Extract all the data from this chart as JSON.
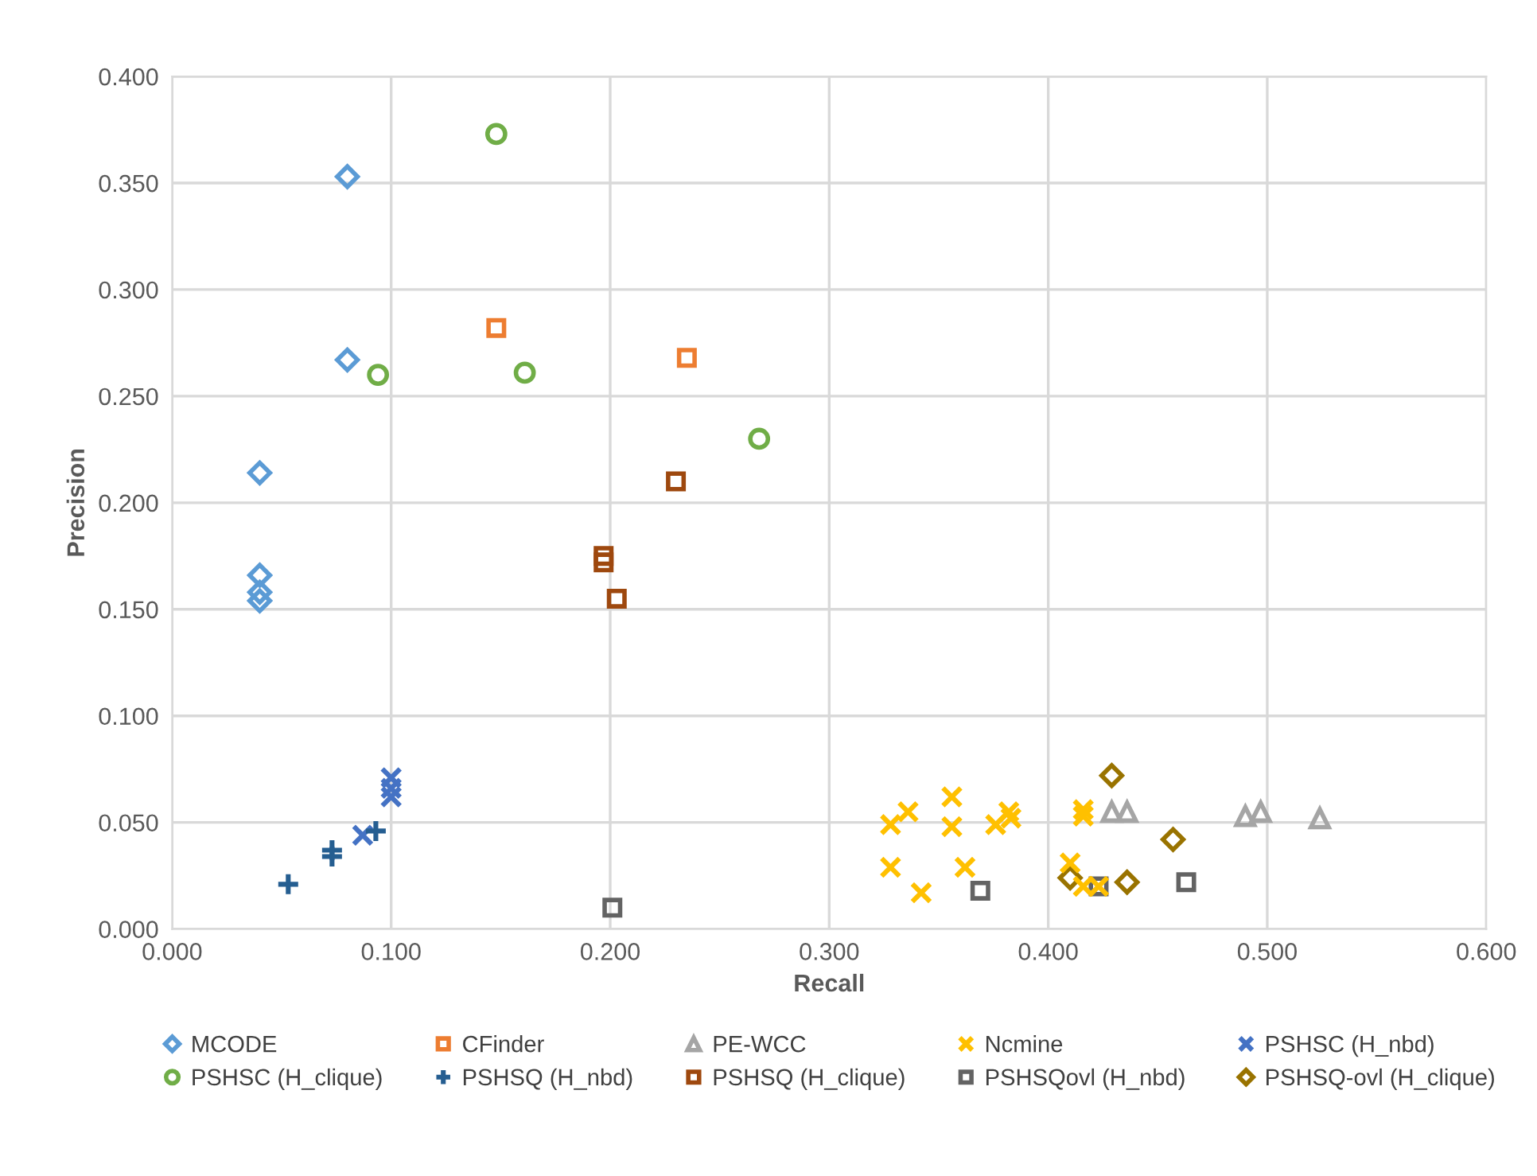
{
  "chart_data": {
    "type": "scatter",
    "xlabel": "Recall",
    "ylabel": "Precision",
    "xlim": [
      0,
      0.6
    ],
    "ylim": [
      0,
      0.4
    ],
    "xticks": [
      {
        "value": 0,
        "label": "0.000"
      },
      {
        "value": 0.1,
        "label": "0.100"
      },
      {
        "value": 0.2,
        "label": "0.200"
      },
      {
        "value": 0.3,
        "label": "0.300"
      },
      {
        "value": 0.4,
        "label": "0.400"
      },
      {
        "value": 0.5,
        "label": "0.500"
      },
      {
        "value": 0.6,
        "label": "0.600"
      }
    ],
    "yticks": [
      {
        "value": 0,
        "label": "0.000"
      },
      {
        "value": 0.05,
        "label": "0.050"
      },
      {
        "value": 0.1,
        "label": "0.100"
      },
      {
        "value": 0.15,
        "label": "0.150"
      },
      {
        "value": 0.2,
        "label": "0.200"
      },
      {
        "value": 0.25,
        "label": "0.250"
      },
      {
        "value": 0.3,
        "label": "0.300"
      },
      {
        "value": 0.35,
        "label": "0.350"
      },
      {
        "value": 0.4,
        "label": "0.400"
      }
    ],
    "grid": true,
    "legend": "bottom",
    "series": [
      {
        "name": "MCODE",
        "color": "#5b9bd5",
        "marker": "diamond",
        "x": [
          0.08,
          0.08,
          0.04,
          0.04,
          0.04,
          0.04
        ],
        "values": [
          0.353,
          0.267,
          0.214,
          0.166,
          0.158,
          0.154
        ]
      },
      {
        "name": "CFinder",
        "color": "#ed7d31",
        "marker": "square",
        "x": [
          0.148,
          0.235
        ],
        "values": [
          0.282,
          0.268
        ]
      },
      {
        "name": "PE-WCC",
        "color": "#a5a5a5",
        "marker": "triangle",
        "x": [
          0.429,
          0.436,
          0.49,
          0.497,
          0.524
        ],
        "values": [
          0.055,
          0.055,
          0.053,
          0.055,
          0.052
        ]
      },
      {
        "name": "Ncmine",
        "color": "#ffc000",
        "marker": "cross",
        "x": [
          0.328,
          0.336,
          0.356,
          0.356,
          0.328,
          0.362,
          0.342,
          0.376,
          0.382,
          0.383,
          0.416,
          0.416,
          0.41,
          0.416,
          0.423
        ],
        "values": [
          0.049,
          0.055,
          0.062,
          0.048,
          0.029,
          0.029,
          0.017,
          0.049,
          0.055,
          0.052,
          0.056,
          0.053,
          0.031,
          0.02,
          0.02
        ]
      },
      {
        "name": "PSHSC (H_nbd)",
        "color": "#4472c4",
        "marker": "cross",
        "x": [
          0.1,
          0.1,
          0.1,
          0.087
        ],
        "values": [
          0.071,
          0.066,
          0.062,
          0.044
        ]
      },
      {
        "name": "PSHSC (H_clique)",
        "color": "#70ad47",
        "marker": "circle",
        "x": [
          0.148,
          0.094,
          0.161,
          0.268
        ],
        "values": [
          0.373,
          0.26,
          0.261,
          0.23
        ]
      },
      {
        "name": "PSHSQ (H_nbd)",
        "color": "#255e91",
        "marker": "plus",
        "x": [
          0.053,
          0.073,
          0.073,
          0.093
        ],
        "values": [
          0.021,
          0.037,
          0.034,
          0.046
        ]
      },
      {
        "name": "PSHSQ (H_clique)",
        "color": "#9e480e",
        "marker": "square",
        "x": [
          0.23,
          0.197,
          0.197,
          0.203
        ],
        "values": [
          0.21,
          0.175,
          0.172,
          0.155
        ]
      },
      {
        "name": "PSHSQovl (H_nbd)",
        "color": "#636363",
        "marker": "square",
        "x": [
          0.201,
          0.369,
          0.423,
          0.463
        ],
        "values": [
          0.01,
          0.018,
          0.02,
          0.022
        ]
      },
      {
        "name": "PSHSQ-ovl (H_clique)",
        "color": "#997300",
        "marker": "diamond",
        "x": [
          0.429,
          0.457,
          0.41,
          0.436
        ],
        "values": [
          0.072,
          0.042,
          0.024,
          0.022
        ]
      }
    ]
  }
}
